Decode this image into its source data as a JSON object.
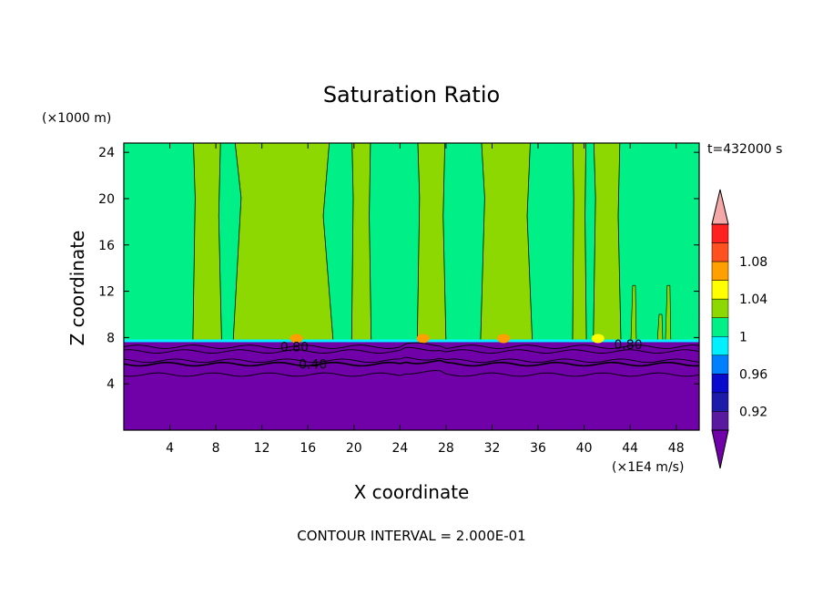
{
  "chart_data": {
    "type": "heatmap",
    "title": "Saturation Ratio",
    "time_label": "t=432000 s",
    "xlabel": "X coordinate",
    "ylabel": "Z coordinate",
    "x_unit": "(×1E4 m/s)",
    "y_unit": "(×1000 m)",
    "footer": "CONTOUR INTERVAL = 2.000E-01",
    "xlim": [
      0,
      50
    ],
    "ylim": [
      0,
      24.8
    ],
    "x_ticks": [
      4,
      8,
      12,
      16,
      20,
      24,
      28,
      32,
      36,
      40,
      44,
      48
    ],
    "y_ticks": [
      4,
      8,
      12,
      16,
      20,
      24
    ],
    "colorbar": {
      "levels": [
        {
          "value": 0.9,
          "color": "#5a1aa0"
        },
        {
          "value": 0.92,
          "color": "#1c1ca8"
        },
        {
          "value": 0.94,
          "color": "#0a0acc"
        },
        {
          "value": 0.96,
          "color": "#0080ff"
        },
        {
          "value": 0.98,
          "color": "#00f0ff"
        },
        {
          "value": 1.0,
          "color": "#00f088"
        },
        {
          "value": 1.02,
          "color": "#8cd800"
        },
        {
          "value": 1.04,
          "color": "#ffff00"
        },
        {
          "value": 1.06,
          "color": "#ffa000"
        },
        {
          "value": 1.08,
          "color": "#ff5020"
        },
        {
          "value": 1.1,
          "color": "#ff2020"
        }
      ],
      "tick_labels": [
        "0.92",
        "0.96",
        "1",
        "1.04",
        "1.08"
      ],
      "under_color": "#7000a8",
      "over_color": "#f4a8a8"
    },
    "field_colors": {
      "below_cloud": "#7000a8",
      "background": "#00f088",
      "supersaturated": "#8cd800"
    },
    "cloud_base_z": 7.6,
    "supersaturated_columns": [
      {
        "x0": 6.0,
        "x1": 8.5
      },
      {
        "x0": 9.5,
        "x1": 18.2
      },
      {
        "x0": 19.8,
        "x1": 21.5
      },
      {
        "x0": 25.5,
        "x1": 28.0
      },
      {
        "x0": 31.0,
        "x1": 35.5
      },
      {
        "x0": 39.0,
        "x1": 40.2
      },
      {
        "x0": 40.8,
        "x1": 43.2
      }
    ],
    "contour_labels": [
      {
        "text": "0.80",
        "x": 13.6,
        "z": 7.2
      },
      {
        "text": "0.40",
        "x": 15.2,
        "z": 5.7
      },
      {
        "text": "0.80",
        "x": 42.6,
        "z": 7.4
      }
    ]
  }
}
